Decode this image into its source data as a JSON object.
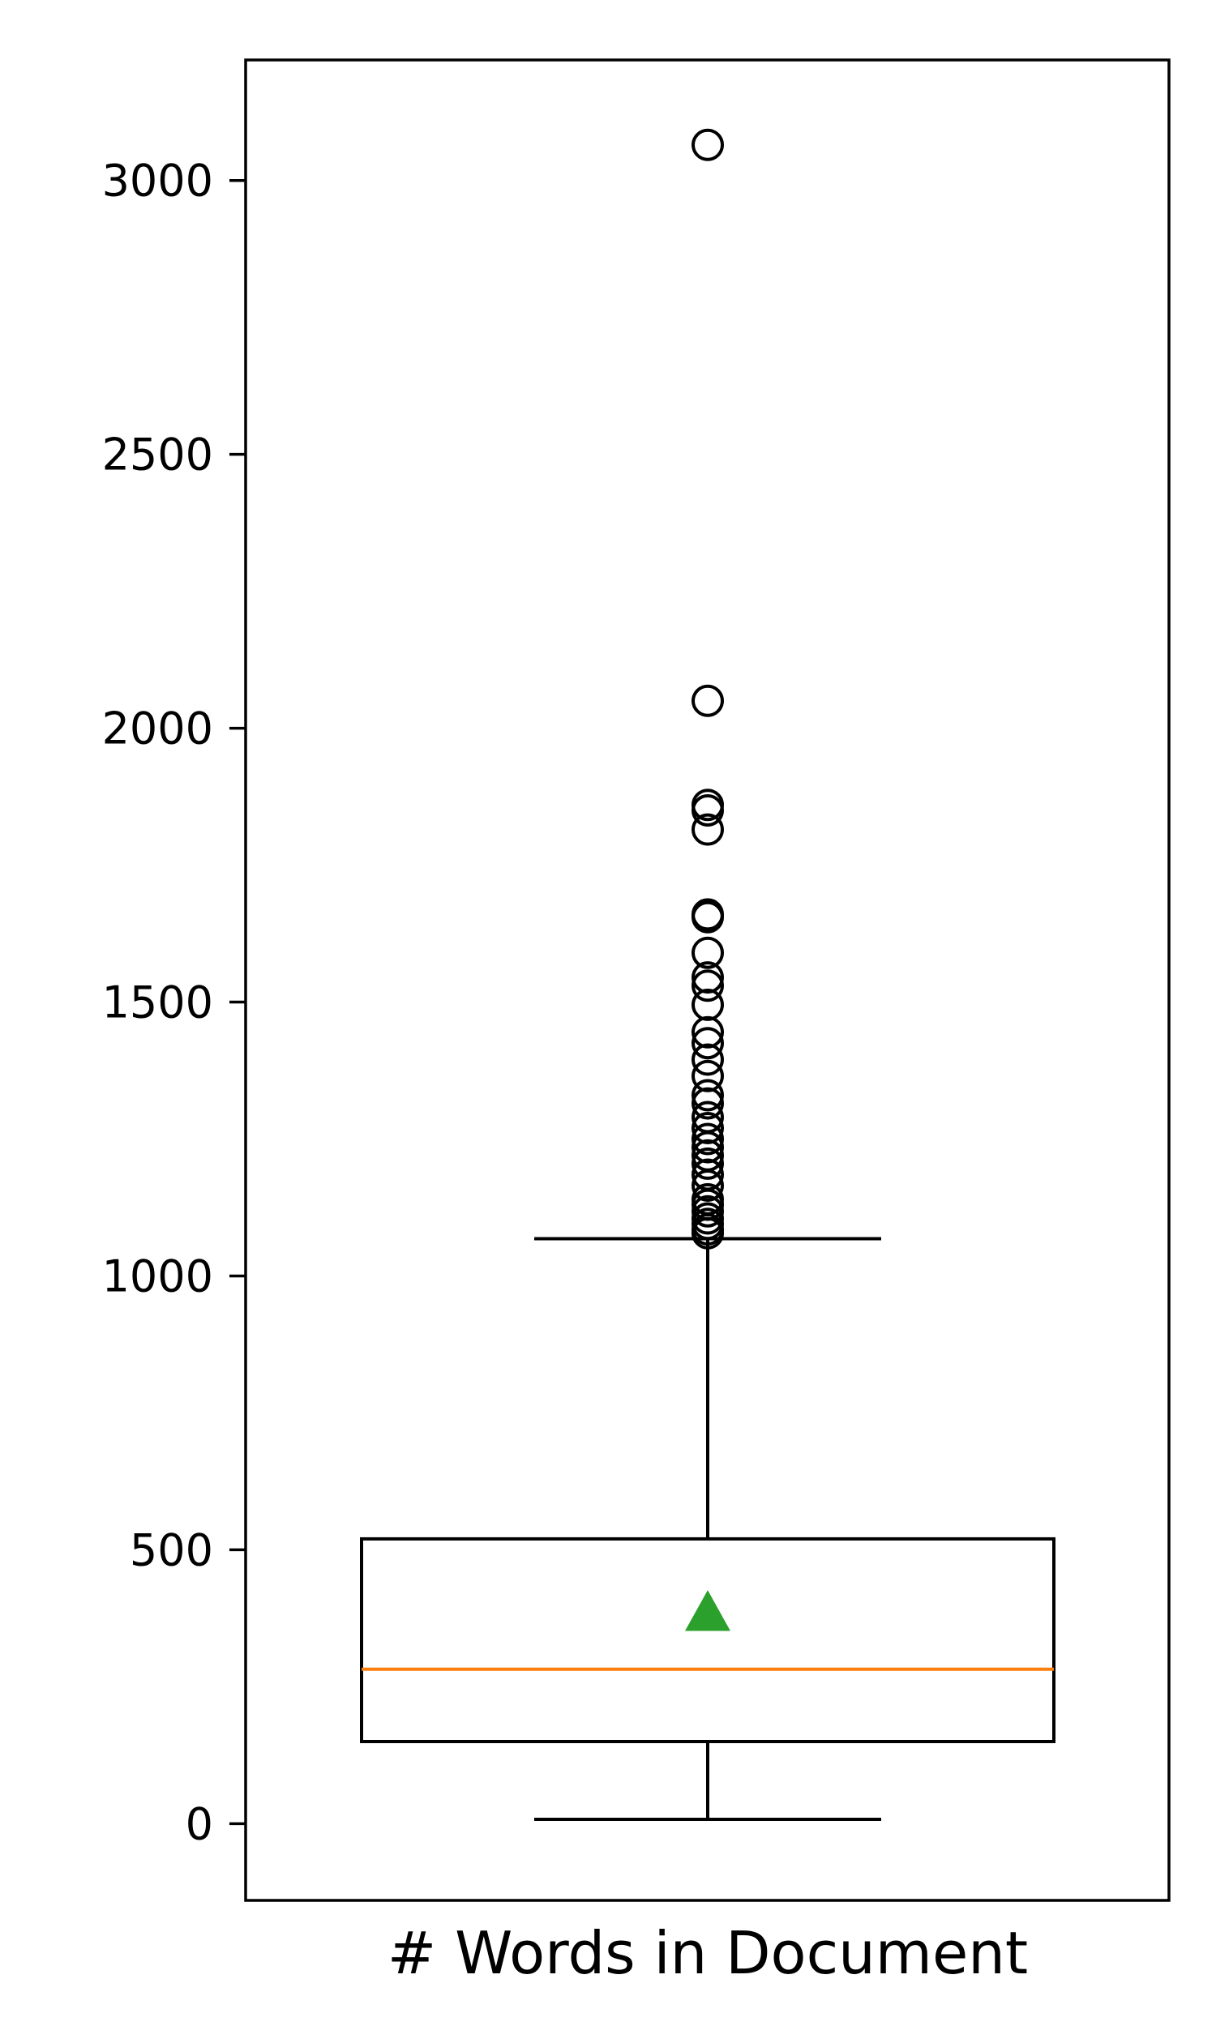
{
  "chart_data": {
    "type": "box",
    "title": "",
    "xlabel": "",
    "ylabel": "",
    "categories": [
      "# Words in Document"
    ],
    "ylim": [
      -140,
      3220
    ],
    "yticks": [
      0,
      500,
      1000,
      1500,
      2000,
      2500,
      3000
    ],
    "grid": false,
    "legend": "none",
    "boxes": [
      {
        "name": "# Words in Document",
        "whisker_low": 8,
        "q1": 150,
        "median": 282,
        "mean": 385,
        "q3": 520,
        "whisker_high": 1068,
        "outliers": [
          1078,
          1085,
          1095,
          1105,
          1118,
          1130,
          1140,
          1165,
          1185,
          1205,
          1220,
          1235,
          1250,
          1270,
          1290,
          1315,
          1330,
          1365,
          1395,
          1425,
          1445,
          1495,
          1530,
          1545,
          1590,
          1655,
          1660,
          1815,
          1850,
          1860,
          2050,
          3065
        ]
      }
    ],
    "colors": {
      "box": "#000000",
      "median": "#ff7f0e",
      "mean": "#2ca02c",
      "outlier": "#000000"
    }
  }
}
